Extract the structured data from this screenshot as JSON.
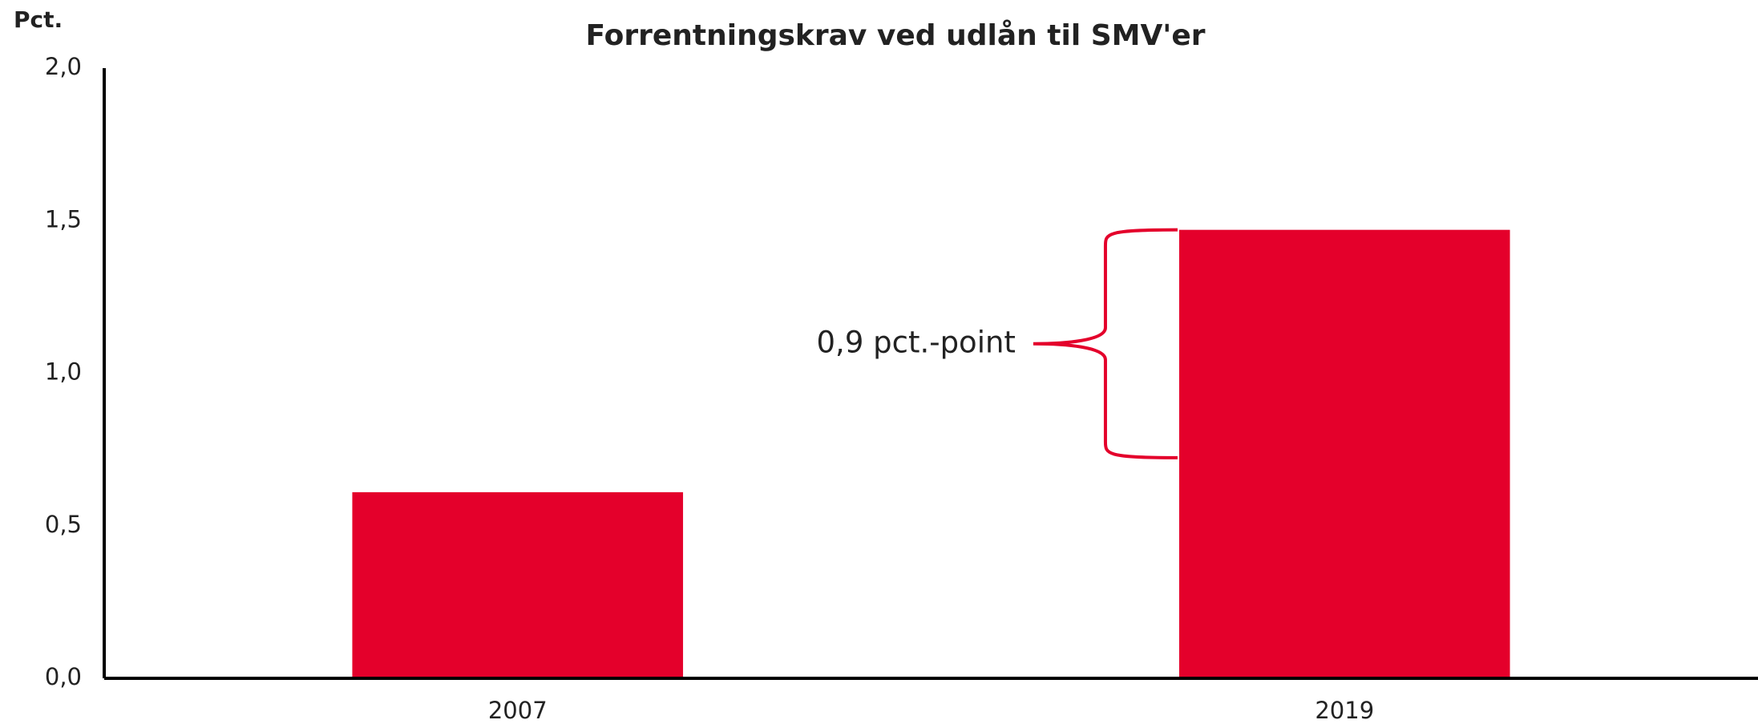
{
  "chart_data": {
    "type": "bar",
    "title": "Forrentningskrav ved udlån til SMV'er",
    "y_label": "Pct.",
    "categories": [
      "2007",
      "2019"
    ],
    "values": [
      0.61,
      1.47
    ],
    "color": "#e4002b",
    "ylim": [
      0,
      2
    ],
    "yticks": [
      {
        "value": 0,
        "label": "0,0"
      },
      {
        "value": 0.5,
        "label": "0,5"
      },
      {
        "value": 1,
        "label": "1,0"
      },
      {
        "value": 1.5,
        "label": "1,5"
      },
      {
        "value": 2,
        "label": "2,0"
      }
    ],
    "annotation": "0,9 pct.-point"
  }
}
